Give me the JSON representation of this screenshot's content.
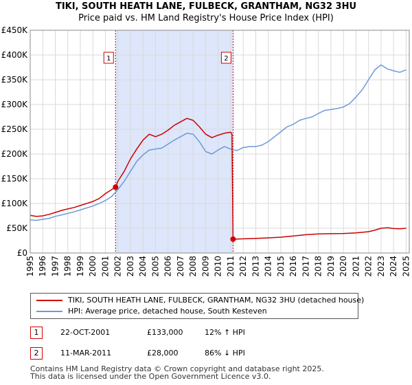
{
  "header": {
    "title": "TIKI, SOUTH HEATH LANE, FULBECK, GRANTHAM, NG32 3HU",
    "subtitle": "Price paid vs. HM Land Registry's House Price Index (HPI)"
  },
  "colors": {
    "property": "#cc0000",
    "hpi": "#6a9ad8",
    "band": "#dde6fa",
    "marker": "#cc0000"
  },
  "chart_data": {
    "type": "line",
    "title": "Price paid vs. HM Land Registry's House Price Index (HPI)",
    "xlim": [
      1995,
      2025.25
    ],
    "ylim": [
      0,
      450000
    ],
    "yticks": [
      0,
      50000,
      100000,
      150000,
      200000,
      250000,
      300000,
      350000,
      400000,
      450000
    ],
    "ytick_labels": [
      "£0",
      "£50K",
      "£100K",
      "£150K",
      "£200K",
      "£250K",
      "£300K",
      "£350K",
      "£400K",
      "£450K"
    ],
    "xticks": [
      1995,
      1996,
      1997,
      1998,
      1999,
      2000,
      2001,
      2002,
      2003,
      2004,
      2005,
      2006,
      2007,
      2008,
      2009,
      2010,
      2011,
      2012,
      2013,
      2014,
      2015,
      2016,
      2017,
      2018,
      2019,
      2020,
      2021,
      2022,
      2023,
      2024,
      2025
    ],
    "xtick_labels": [
      "1995",
      "1996",
      "1997",
      "1998",
      "1999",
      "2000",
      "2001",
      "2002",
      "2003",
      "2004",
      "2005",
      "2006",
      "2007",
      "2008",
      "2009",
      "2010",
      "2011",
      "2012",
      "2013",
      "2014",
      "2015",
      "2016",
      "2017",
      "2018",
      "2019",
      "2020",
      "2021",
      "2022",
      "2023",
      "2024",
      "2025"
    ],
    "grid": true,
    "shaded_range": [
      2001.81,
      2011.19
    ],
    "annotations": [
      {
        "label": "1",
        "x": 2001.81
      },
      {
        "label": "2",
        "x": 2011.19
      }
    ],
    "sales": [
      {
        "label": "1",
        "x": 2001.81,
        "y": 133000
      },
      {
        "label": "2",
        "x": 2011.19,
        "y": 28000
      }
    ],
    "series": [
      {
        "name": "TIKI, SOUTH HEATH LANE, FULBECK, GRANTHAM, NG32 3HU (detached house)",
        "color": "#cc0000",
        "x": [
          1995,
          1995.5,
          1996,
          1996.5,
          1997,
          1997.5,
          1998,
          1998.5,
          1999,
          1999.5,
          2000,
          2000.5,
          2001,
          2001.5,
          2001.81,
          2002,
          2002.5,
          2003,
          2003.5,
          2004,
          2004.5,
          2005,
          2005.5,
          2006,
          2006.5,
          2007,
          2007.5,
          2008,
          2008.5,
          2009,
          2009.5,
          2010,
          2010.5,
          2011,
          2011.1,
          2011.19,
          2011.5,
          2012,
          2013,
          2014,
          2015,
          2016,
          2017,
          2018,
          2019,
          2020,
          2021,
          2022,
          2022.5,
          2023,
          2023.5,
          2024,
          2024.5,
          2025
        ],
        "y": [
          76000,
          74000,
          75000,
          78000,
          82000,
          86000,
          89000,
          92000,
          96000,
          100000,
          104000,
          110000,
          120000,
          128000,
          133000,
          145000,
          165000,
          190000,
          210000,
          228000,
          240000,
          235000,
          240000,
          248000,
          258000,
          265000,
          272000,
          268000,
          255000,
          240000,
          233000,
          238000,
          242000,
          244000,
          240000,
          28000,
          28200,
          28600,
          29500,
          30500,
          32000,
          34500,
          37000,
          38500,
          39000,
          39500,
          40500,
          43000,
          46000,
          50000,
          51000,
          49500,
          49000,
          50000
        ]
      },
      {
        "name": "HPI: Average price, detached house, South Kesteven",
        "color": "#6a9ad8",
        "x": [
          1995,
          1995.5,
          1996,
          1996.5,
          1997,
          1997.5,
          1998,
          1998.5,
          1999,
          1999.5,
          2000,
          2000.5,
          2001,
          2001.5,
          2002,
          2002.5,
          2003,
          2003.5,
          2004,
          2004.5,
          2005,
          2005.5,
          2006,
          2006.5,
          2007,
          2007.5,
          2008,
          2008.5,
          2009,
          2009.5,
          2010,
          2010.5,
          2011,
          2011.5,
          2012,
          2012.5,
          2013,
          2013.5,
          2014,
          2014.5,
          2015,
          2015.5,
          2016,
          2016.5,
          2017,
          2017.5,
          2018,
          2018.5,
          2019,
          2019.5,
          2020,
          2020.5,
          2021,
          2021.5,
          2022,
          2022.5,
          2023,
          2023.5,
          2024,
          2024.5,
          2025
        ],
        "y": [
          67000,
          66000,
          68000,
          70000,
          74000,
          77000,
          80000,
          83000,
          87000,
          91000,
          95000,
          100000,
          106000,
          114000,
          128000,
          145000,
          165000,
          185000,
          198000,
          208000,
          210000,
          212000,
          220000,
          228000,
          235000,
          242000,
          240000,
          225000,
          205000,
          200000,
          208000,
          215000,
          210000,
          207000,
          213000,
          215000,
          215000,
          218000,
          225000,
          235000,
          245000,
          255000,
          260000,
          268000,
          272000,
          275000,
          282000,
          288000,
          290000,
          292000,
          295000,
          302000,
          315000,
          330000,
          350000,
          370000,
          380000,
          372000,
          368000,
          365000,
          370000
        ]
      }
    ]
  },
  "legend": {
    "property_label": "TIKI, SOUTH HEATH LANE, FULBECK, GRANTHAM, NG32 3HU (detached house)",
    "hpi_label": "HPI: Average price, detached house, South Kesteven"
  },
  "transactions": [
    {
      "num": "1",
      "date": "22-OCT-2001",
      "price": "£133,000",
      "pct": "12% ↑ HPI"
    },
    {
      "num": "2",
      "date": "11-MAR-2011",
      "price": "£28,000",
      "pct": "86% ↓ HPI"
    }
  ],
  "footer": {
    "line1": "Contains HM Land Registry data © Crown copyright and database right 2025.",
    "line2": "This data is licensed under the Open Government Licence v3.0."
  }
}
